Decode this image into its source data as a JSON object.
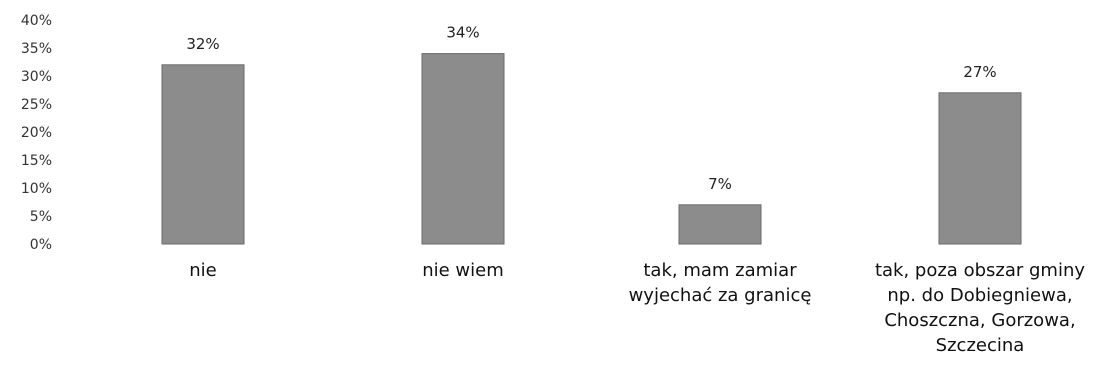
{
  "chart_data": {
    "type": "bar",
    "categories": [
      [
        "nie"
      ],
      [
        "nie wiem"
      ],
      [
        "tak, mam zamiar",
        "wyjechać za granicę"
      ],
      [
        "tak, poza obszar gminy",
        "np. do Dobiegniewa,",
        "Choszczna, Gorzowa,",
        "Szczecina"
      ]
    ],
    "values": [
      32,
      34,
      7,
      27
    ],
    "data_labels": [
      "32%",
      "34%",
      "7%",
      "27%"
    ],
    "yticks": [
      "0%",
      "5%",
      "10%",
      "15%",
      "20%",
      "25%",
      "30%",
      "35%",
      "40%"
    ],
    "ylim": [
      0,
      40
    ],
    "grid": false,
    "bar_color": "#8c8c8c",
    "title": "",
    "xlabel": "",
    "ylabel": ""
  }
}
